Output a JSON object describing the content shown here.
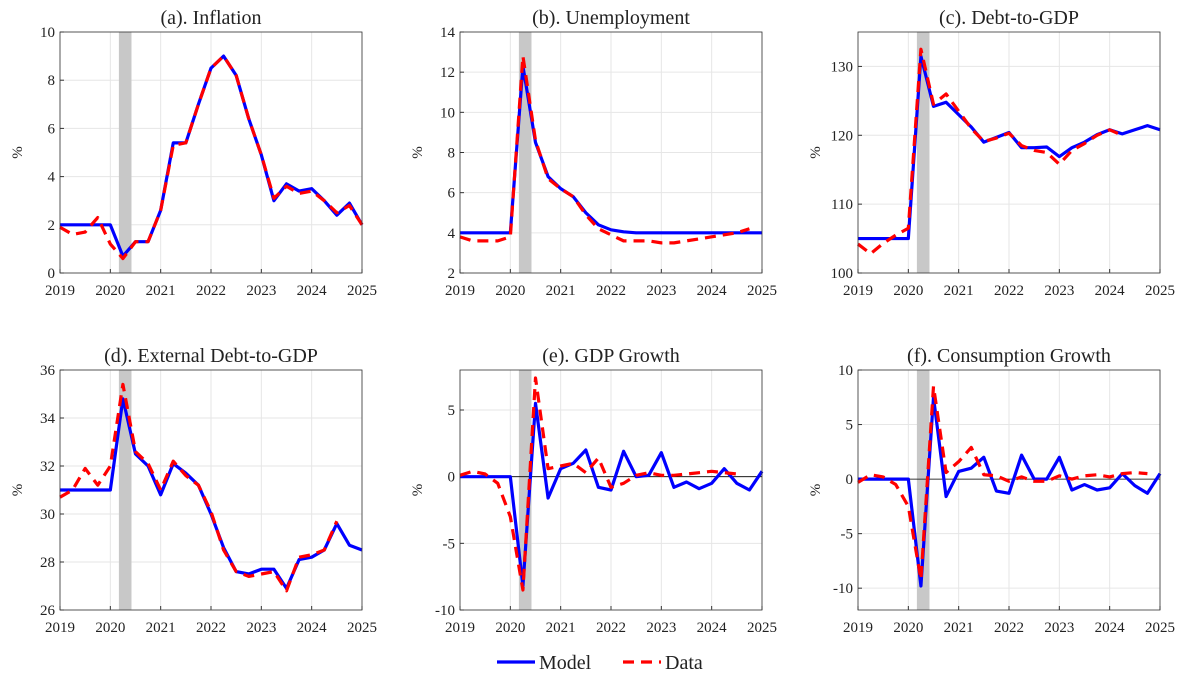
{
  "chart_data": [
    {
      "type": "line",
      "title": "(a). Inflation",
      "ylabel": "%",
      "x": [
        2019,
        2019.25,
        2019.5,
        2019.75,
        2020,
        2020.25,
        2020.5,
        2020.75,
        2021,
        2021.25,
        2021.5,
        2021.75,
        2022,
        2022.25,
        2022.5,
        2022.75,
        2023,
        2023.25,
        2023.5,
        2023.75,
        2024,
        2024.25,
        2024.5,
        2024.75,
        2025
      ],
      "series": [
        {
          "name": "Model",
          "color": "#0000ff",
          "style": "solid",
          "values": [
            2,
            2,
            2,
            2,
            2,
            0.7,
            1.3,
            1.3,
            2.6,
            5.4,
            5.4,
            7,
            8.5,
            9,
            8.2,
            6.4,
            4.9,
            3,
            3.7,
            3.4,
            3.5,
            3,
            2.4,
            2.9,
            2
          ]
        },
        {
          "name": "Data",
          "color": "#ff0000",
          "style": "dashed",
          "values": [
            1.9,
            1.6,
            1.7,
            2.3,
            1.2,
            0.6,
            1.3,
            1.3,
            2.6,
            5.3,
            5.4,
            7,
            8.5,
            9,
            8.2,
            6.4,
            4.9,
            3.1,
            3.6,
            3.3,
            3.4,
            3,
            2.5,
            2.8,
            2
          ]
        }
      ],
      "xlim": [
        2019,
        2025
      ],
      "xticks": [
        2019,
        2020,
        2021,
        2022,
        2023,
        2024,
        2025
      ],
      "ylim": [
        0,
        10
      ],
      "yticks": [
        0,
        2,
        4,
        6,
        8,
        10
      ],
      "grid": true,
      "shade": [
        2020.17,
        2020.42
      ],
      "zero_line": false
    },
    {
      "type": "line",
      "title": "(b). Unemployment",
      "ylabel": "%",
      "x": [
        2019,
        2019.25,
        2019.5,
        2019.75,
        2020,
        2020.25,
        2020.5,
        2020.75,
        2021,
        2021.25,
        2021.5,
        2021.75,
        2022,
        2022.25,
        2022.5,
        2022.75,
        2023,
        2023.25,
        2023.5,
        2023.75,
        2024,
        2024.25,
        2024.5,
        2024.75,
        2025
      ],
      "series": [
        {
          "color": "#0000ff",
          "style": "solid",
          "values": [
            4,
            4,
            4,
            4,
            4,
            12.3,
            8.5,
            6.8,
            6.2,
            5.8,
            5,
            4.4,
            4.15,
            4.05,
            4,
            4,
            4,
            4,
            4,
            4,
            4,
            4,
            4,
            4,
            4
          ]
        },
        {
          "color": "#ff0000",
          "style": "dashed",
          "values": [
            3.8,
            3.6,
            3.6,
            3.6,
            3.8,
            12.8,
            8.6,
            6.7,
            6.2,
            5.8,
            4.9,
            4.2,
            3.9,
            3.6,
            3.6,
            3.6,
            3.5,
            3.5,
            3.6,
            3.7,
            3.8,
            3.9,
            4,
            4.2,
            null
          ]
        }
      ],
      "xlim": [
        2019,
        2025
      ],
      "xticks": [
        2019,
        2020,
        2021,
        2022,
        2023,
        2024,
        2025
      ],
      "ylim": [
        2,
        14
      ],
      "yticks": [
        2,
        4,
        6,
        8,
        10,
        12,
        14
      ],
      "grid": true,
      "shade": [
        2020.17,
        2020.42
      ],
      "zero_line": false
    },
    {
      "type": "line",
      "title": "(c). Debt-to-GDP",
      "ylabel": "%",
      "x": [
        2019,
        2019.25,
        2019.5,
        2019.75,
        2020,
        2020.25,
        2020.5,
        2020.75,
        2021,
        2021.25,
        2021.5,
        2021.75,
        2022,
        2022.25,
        2022.5,
        2022.75,
        2023,
        2023.25,
        2023.5,
        2023.75,
        2024,
        2024.25,
        2024.5,
        2024.75,
        2025
      ],
      "series": [
        {
          "color": "#0000ff",
          "style": "solid",
          "values": [
            105,
            105,
            105,
            105,
            105,
            131.5,
            124.2,
            124.8,
            123,
            121.2,
            119,
            119.7,
            120.4,
            118.2,
            118.2,
            118.3,
            116.9,
            118.2,
            119,
            120.1,
            120.8,
            120.2,
            120.8,
            121.4,
            120.8
          ]
        },
        {
          "color": "#ff0000",
          "style": "dashed",
          "values": [
            104.2,
            102.8,
            104.3,
            105.5,
            106.5,
            132.5,
            124.5,
            126,
            123.5,
            121,
            119.1,
            119.6,
            120.3,
            118.5,
            117.8,
            117.5,
            115.8,
            117.8,
            118.8,
            120,
            120.8,
            120,
            null,
            null,
            null
          ]
        }
      ],
      "xlim": [
        2019,
        2025
      ],
      "xticks": [
        2019,
        2020,
        2021,
        2022,
        2023,
        2024,
        2025
      ],
      "ylim": [
        100,
        135
      ],
      "yticks": [
        100,
        110,
        120,
        130
      ],
      "grid": true,
      "shade": [
        2020.17,
        2020.42
      ],
      "zero_line": false
    },
    {
      "type": "line",
      "title": "(d). External Debt-to-GDP",
      "ylabel": "%",
      "x": [
        2019,
        2019.25,
        2019.5,
        2019.75,
        2020,
        2020.25,
        2020.5,
        2020.75,
        2021,
        2021.25,
        2021.5,
        2021.75,
        2022,
        2022.25,
        2022.5,
        2022.75,
        2023,
        2023.25,
        2023.5,
        2023.75,
        2024,
        2024.25,
        2024.5,
        2024.75,
        2025
      ],
      "series": [
        {
          "color": "#0000ff",
          "style": "solid",
          "values": [
            31,
            31,
            31,
            31,
            31,
            34.8,
            32.5,
            32,
            30.8,
            32.1,
            31.7,
            31.2,
            30,
            28.6,
            27.6,
            27.5,
            27.7,
            27.7,
            26.9,
            28.1,
            28.2,
            28.5,
            29.6,
            28.7,
            28.5
          ]
        },
        {
          "color": "#ff0000",
          "style": "dashed",
          "values": [
            30.7,
            31,
            31.9,
            31.2,
            32,
            35.4,
            32.6,
            32.1,
            31,
            32.2,
            31.6,
            31.2,
            30.1,
            28.5,
            27.6,
            27.4,
            27.5,
            27.6,
            26.8,
            28.2,
            28.3,
            28.5,
            29.7,
            null,
            null
          ]
        }
      ],
      "xlim": [
        2019,
        2025
      ],
      "xticks": [
        2019,
        2020,
        2021,
        2022,
        2023,
        2024,
        2025
      ],
      "ylim": [
        26,
        36
      ],
      "yticks": [
        26,
        28,
        30,
        32,
        34,
        36
      ],
      "grid": true,
      "shade": [
        2020.17,
        2020.42
      ],
      "zero_line": false
    },
    {
      "type": "line",
      "title": "(e). GDP Growth",
      "ylabel": "%",
      "x": [
        2019,
        2019.25,
        2019.5,
        2019.75,
        2020,
        2020.25,
        2020.5,
        2020.75,
        2021,
        2021.25,
        2021.5,
        2021.75,
        2022,
        2022.25,
        2022.5,
        2022.75,
        2023,
        2023.25,
        2023.5,
        2023.75,
        2024,
        2024.25,
        2024.5,
        2024.75,
        2025
      ],
      "series": [
        {
          "color": "#0000ff",
          "style": "solid",
          "values": [
            0,
            0,
            0,
            0,
            0,
            -8.2,
            5.5,
            -1.6,
            0.6,
            1,
            2,
            -0.8,
            -1,
            1.9,
            0,
            0.1,
            1.8,
            -0.8,
            -0.4,
            -0.9,
            -0.5,
            0.6,
            -0.5,
            -1,
            0.4
          ]
        },
        {
          "color": "#ff0000",
          "style": "dashed",
          "values": [
            0.1,
            0.4,
            0.2,
            -0.5,
            -3,
            -8.5,
            7.4,
            0.6,
            0.8,
            1,
            0.3,
            1.4,
            -0.8,
            -0.5,
            0.1,
            0.3,
            0.1,
            0.1,
            0.2,
            0.3,
            0.4,
            0.3,
            0.2,
            null,
            null
          ]
        }
      ],
      "xlim": [
        2019,
        2025
      ],
      "xticks": [
        2019,
        2020,
        2021,
        2022,
        2023,
        2024,
        2025
      ],
      "ylim": [
        -10,
        8
      ],
      "yticks": [
        -10,
        -5,
        0,
        5
      ],
      "grid": true,
      "shade": [
        2020.17,
        2020.42
      ],
      "zero_line": true
    },
    {
      "type": "line",
      "title": "(f). Consumption Growth",
      "ylabel": "%",
      "x": [
        2019,
        2019.25,
        2019.5,
        2019.75,
        2020,
        2020.25,
        2020.5,
        2020.75,
        2021,
        2021.25,
        2021.5,
        2021.75,
        2022,
        2022.25,
        2022.5,
        2022.75,
        2023,
        2023.25,
        2023.5,
        2023.75,
        2024,
        2024.25,
        2024.5,
        2024.75,
        2025
      ],
      "series": [
        {
          "color": "#0000ff",
          "style": "solid",
          "values": [
            0,
            0,
            0,
            0,
            0,
            -9.8,
            7.5,
            -1.6,
            0.7,
            1,
            2,
            -1.1,
            -1.3,
            2.2,
            0,
            0,
            2,
            -1,
            -0.5,
            -1,
            -0.8,
            0.5,
            -0.6,
            -1.3,
            0.5
          ]
        },
        {
          "color": "#ff0000",
          "style": "dashed",
          "values": [
            -0.3,
            0.4,
            0.2,
            -0.5,
            -2.5,
            -9.2,
            8.5,
            0.6,
            1.6,
            2.9,
            0.4,
            0.3,
            -0.2,
            0.2,
            -0.2,
            -0.2,
            0.3,
            0,
            0.3,
            0.4,
            0.2,
            0.5,
            0.6,
            0.5,
            null
          ]
        }
      ],
      "xlim": [
        2019,
        2025
      ],
      "xticks": [
        2019,
        2020,
        2021,
        2022,
        2023,
        2024,
        2025
      ],
      "ylim": [
        -12,
        10
      ],
      "yticks": [
        -10,
        -5,
        0,
        5,
        10
      ],
      "grid": true,
      "shade": [
        2020.17,
        2020.42
      ],
      "zero_line": true
    }
  ]
}
